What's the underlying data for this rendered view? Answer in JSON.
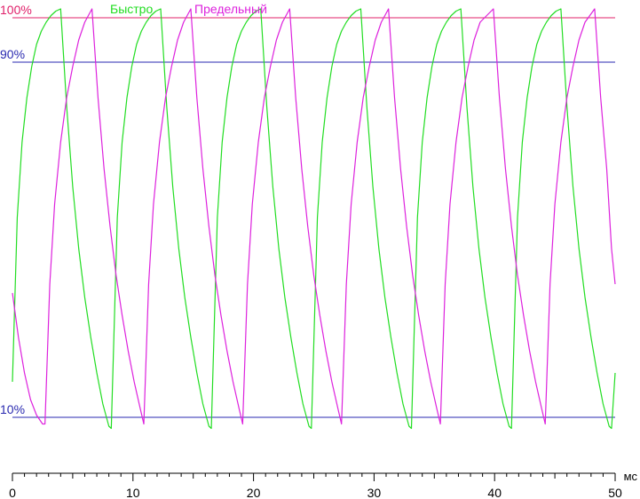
{
  "chart_data": {
    "type": "line",
    "title": "",
    "xlabel": "",
    "ylabel": "",
    "x_unit": "мс",
    "xlim": [
      0,
      50
    ],
    "ylim": [
      0,
      105
    ],
    "x_ticks": [
      0,
      10,
      20,
      30,
      40,
      50
    ],
    "x_minor_step": 1,
    "reference_lines": [
      {
        "label": "100%",
        "value": 100,
        "color": "#e0206a"
      },
      {
        "label": "90%",
        "value": 90,
        "color": "#2a2ab0"
      },
      {
        "label": "10%",
        "value": 10,
        "color": "#2a2ab0"
      }
    ],
    "legend_placement": "top-center",
    "series": [
      {
        "name": "Быстро",
        "color": "#22dd22",
        "points": [
          [
            0,
            18
          ],
          [
            0.4,
            55
          ],
          [
            0.8,
            72
          ],
          [
            1.2,
            82
          ],
          [
            1.6,
            89
          ],
          [
            2.0,
            94
          ],
          [
            2.4,
            97
          ],
          [
            2.8,
            99
          ],
          [
            3.2,
            100.5
          ],
          [
            3.6,
            101.5
          ],
          [
            4.0,
            102
          ],
          [
            4.5,
            80
          ],
          [
            5.0,
            62
          ],
          [
            5.5,
            48
          ],
          [
            6.0,
            37
          ],
          [
            6.5,
            28
          ],
          [
            7.0,
            20
          ],
          [
            7.5,
            13
          ],
          [
            8.0,
            8
          ],
          [
            8.2,
            7.5
          ],
          [
            8.7,
            55
          ],
          [
            9.1,
            72
          ],
          [
            9.5,
            82
          ],
          [
            9.9,
            89
          ],
          [
            10.3,
            94
          ],
          [
            10.7,
            97
          ],
          [
            11.1,
            99
          ],
          [
            11.5,
            100.5
          ],
          [
            11.9,
            101.5
          ],
          [
            12.3,
            102
          ],
          [
            12.8,
            80
          ],
          [
            13.3,
            62
          ],
          [
            13.8,
            48
          ],
          [
            14.3,
            37
          ],
          [
            14.8,
            28
          ],
          [
            15.3,
            20
          ],
          [
            15.8,
            13
          ],
          [
            16.3,
            8
          ],
          [
            16.5,
            7.5
          ],
          [
            17.0,
            55
          ],
          [
            17.4,
            72
          ],
          [
            17.8,
            82
          ],
          [
            18.2,
            89
          ],
          [
            18.6,
            94
          ],
          [
            19.0,
            97
          ],
          [
            19.4,
            99
          ],
          [
            19.8,
            100.5
          ],
          [
            20.2,
            101.5
          ],
          [
            20.6,
            102
          ],
          [
            21.1,
            80
          ],
          [
            21.6,
            62
          ],
          [
            22.1,
            48
          ],
          [
            22.6,
            37
          ],
          [
            23.1,
            28
          ],
          [
            23.6,
            20
          ],
          [
            24.1,
            13
          ],
          [
            24.6,
            8
          ],
          [
            24.8,
            7.5
          ],
          [
            25.3,
            55
          ],
          [
            25.7,
            72
          ],
          [
            26.1,
            82
          ],
          [
            26.5,
            89
          ],
          [
            26.9,
            94
          ],
          [
            27.3,
            97
          ],
          [
            27.7,
            99
          ],
          [
            28.1,
            100.5
          ],
          [
            28.5,
            101.5
          ],
          [
            28.9,
            102
          ],
          [
            29.4,
            80
          ],
          [
            29.9,
            62
          ],
          [
            30.4,
            48
          ],
          [
            30.9,
            37
          ],
          [
            31.4,
            28
          ],
          [
            31.9,
            20
          ],
          [
            32.4,
            13
          ],
          [
            32.9,
            8
          ],
          [
            33.1,
            7.5
          ],
          [
            33.6,
            55
          ],
          [
            34.0,
            72
          ],
          [
            34.4,
            82
          ],
          [
            34.8,
            89
          ],
          [
            35.2,
            94
          ],
          [
            35.6,
            97
          ],
          [
            36.0,
            99
          ],
          [
            36.4,
            100.5
          ],
          [
            36.8,
            101.5
          ],
          [
            37.2,
            102
          ],
          [
            37.7,
            80
          ],
          [
            38.2,
            62
          ],
          [
            38.7,
            48
          ],
          [
            39.2,
            37
          ],
          [
            39.7,
            28
          ],
          [
            40.2,
            20
          ],
          [
            40.7,
            13
          ],
          [
            41.2,
            8
          ],
          [
            41.4,
            7.5
          ],
          [
            41.9,
            55
          ],
          [
            42.3,
            72
          ],
          [
            42.7,
            82
          ],
          [
            43.1,
            89
          ],
          [
            43.5,
            94
          ],
          [
            43.9,
            97
          ],
          [
            44.3,
            99
          ],
          [
            44.7,
            100.5
          ],
          [
            45.1,
            101.5
          ],
          [
            45.5,
            102
          ],
          [
            46.0,
            80
          ],
          [
            46.5,
            62
          ],
          [
            47.0,
            48
          ],
          [
            47.5,
            37
          ],
          [
            48.0,
            28
          ],
          [
            48.5,
            20
          ],
          [
            49.0,
            13
          ],
          [
            49.5,
            8
          ],
          [
            49.7,
            7.5
          ],
          [
            50.0,
            20
          ]
        ]
      },
      {
        "name": "Предельный",
        "color": "#dd22dd",
        "points": [
          [
            0,
            38
          ],
          [
            0.5,
            28
          ],
          [
            1.0,
            20
          ],
          [
            1.5,
            14
          ],
          [
            2.0,
            10.5
          ],
          [
            2.5,
            8.5
          ],
          [
            2.7,
            8.5
          ],
          [
            3.1,
            40
          ],
          [
            3.5,
            58
          ],
          [
            4.0,
            72
          ],
          [
            4.5,
            82
          ],
          [
            5.0,
            89
          ],
          [
            5.5,
            95
          ],
          [
            6.0,
            99
          ],
          [
            6.6,
            102
          ],
          [
            7.1,
            82
          ],
          [
            7.6,
            66
          ],
          [
            8.1,
            53
          ],
          [
            8.6,
            42
          ],
          [
            9.1,
            33
          ],
          [
            9.6,
            25
          ],
          [
            10.1,
            18
          ],
          [
            10.6,
            12
          ],
          [
            10.9,
            8.5
          ],
          [
            11.3,
            40
          ],
          [
            11.7,
            58
          ],
          [
            12.2,
            72
          ],
          [
            12.7,
            82
          ],
          [
            13.2,
            89
          ],
          [
            13.7,
            95
          ],
          [
            14.2,
            99
          ],
          [
            14.8,
            102
          ],
          [
            15.3,
            82
          ],
          [
            15.8,
            66
          ],
          [
            16.3,
            53
          ],
          [
            16.8,
            42
          ],
          [
            17.3,
            33
          ],
          [
            17.8,
            25
          ],
          [
            18.3,
            18
          ],
          [
            18.8,
            12
          ],
          [
            19.1,
            8.5
          ],
          [
            19.5,
            40
          ],
          [
            19.9,
            58
          ],
          [
            20.4,
            72
          ],
          [
            20.9,
            82
          ],
          [
            21.4,
            89
          ],
          [
            21.9,
            95
          ],
          [
            22.4,
            99
          ],
          [
            23.0,
            102
          ],
          [
            23.5,
            82
          ],
          [
            24.0,
            66
          ],
          [
            24.5,
            53
          ],
          [
            25.0,
            42
          ],
          [
            25.5,
            33
          ],
          [
            26.0,
            25
          ],
          [
            26.5,
            18
          ],
          [
            27.0,
            12
          ],
          [
            27.3,
            8.5
          ],
          [
            27.7,
            40
          ],
          [
            28.1,
            58
          ],
          [
            28.6,
            72
          ],
          [
            29.1,
            82
          ],
          [
            29.6,
            89
          ],
          [
            30.1,
            95
          ],
          [
            30.6,
            99
          ],
          [
            31.2,
            102
          ],
          [
            31.7,
            82
          ],
          [
            32.2,
            66
          ],
          [
            32.7,
            53
          ],
          [
            33.2,
            42
          ],
          [
            33.7,
            33
          ],
          [
            34.2,
            25
          ],
          [
            34.7,
            18
          ],
          [
            35.2,
            12
          ],
          [
            35.5,
            8.5
          ],
          [
            35.9,
            40
          ],
          [
            36.3,
            58
          ],
          [
            36.8,
            72
          ],
          [
            37.3,
            82
          ],
          [
            37.8,
            89
          ],
          [
            38.3,
            95
          ],
          [
            38.8,
            99
          ],
          [
            39.9,
            102
          ],
          [
            40.4,
            82
          ],
          [
            40.9,
            66
          ],
          [
            41.4,
            53
          ],
          [
            41.9,
            42
          ],
          [
            42.4,
            33
          ],
          [
            42.9,
            25
          ],
          [
            43.4,
            18
          ],
          [
            43.9,
            12
          ],
          [
            44.2,
            8.5
          ],
          [
            44.6,
            40
          ],
          [
            45.0,
            58
          ],
          [
            45.5,
            72
          ],
          [
            46.0,
            82
          ],
          [
            46.5,
            89
          ],
          [
            47.0,
            95
          ],
          [
            47.5,
            99
          ],
          [
            48.3,
            102
          ],
          [
            48.8,
            82
          ],
          [
            49.3,
            66
          ],
          [
            49.7,
            48
          ],
          [
            50.0,
            40
          ]
        ]
      }
    ]
  }
}
